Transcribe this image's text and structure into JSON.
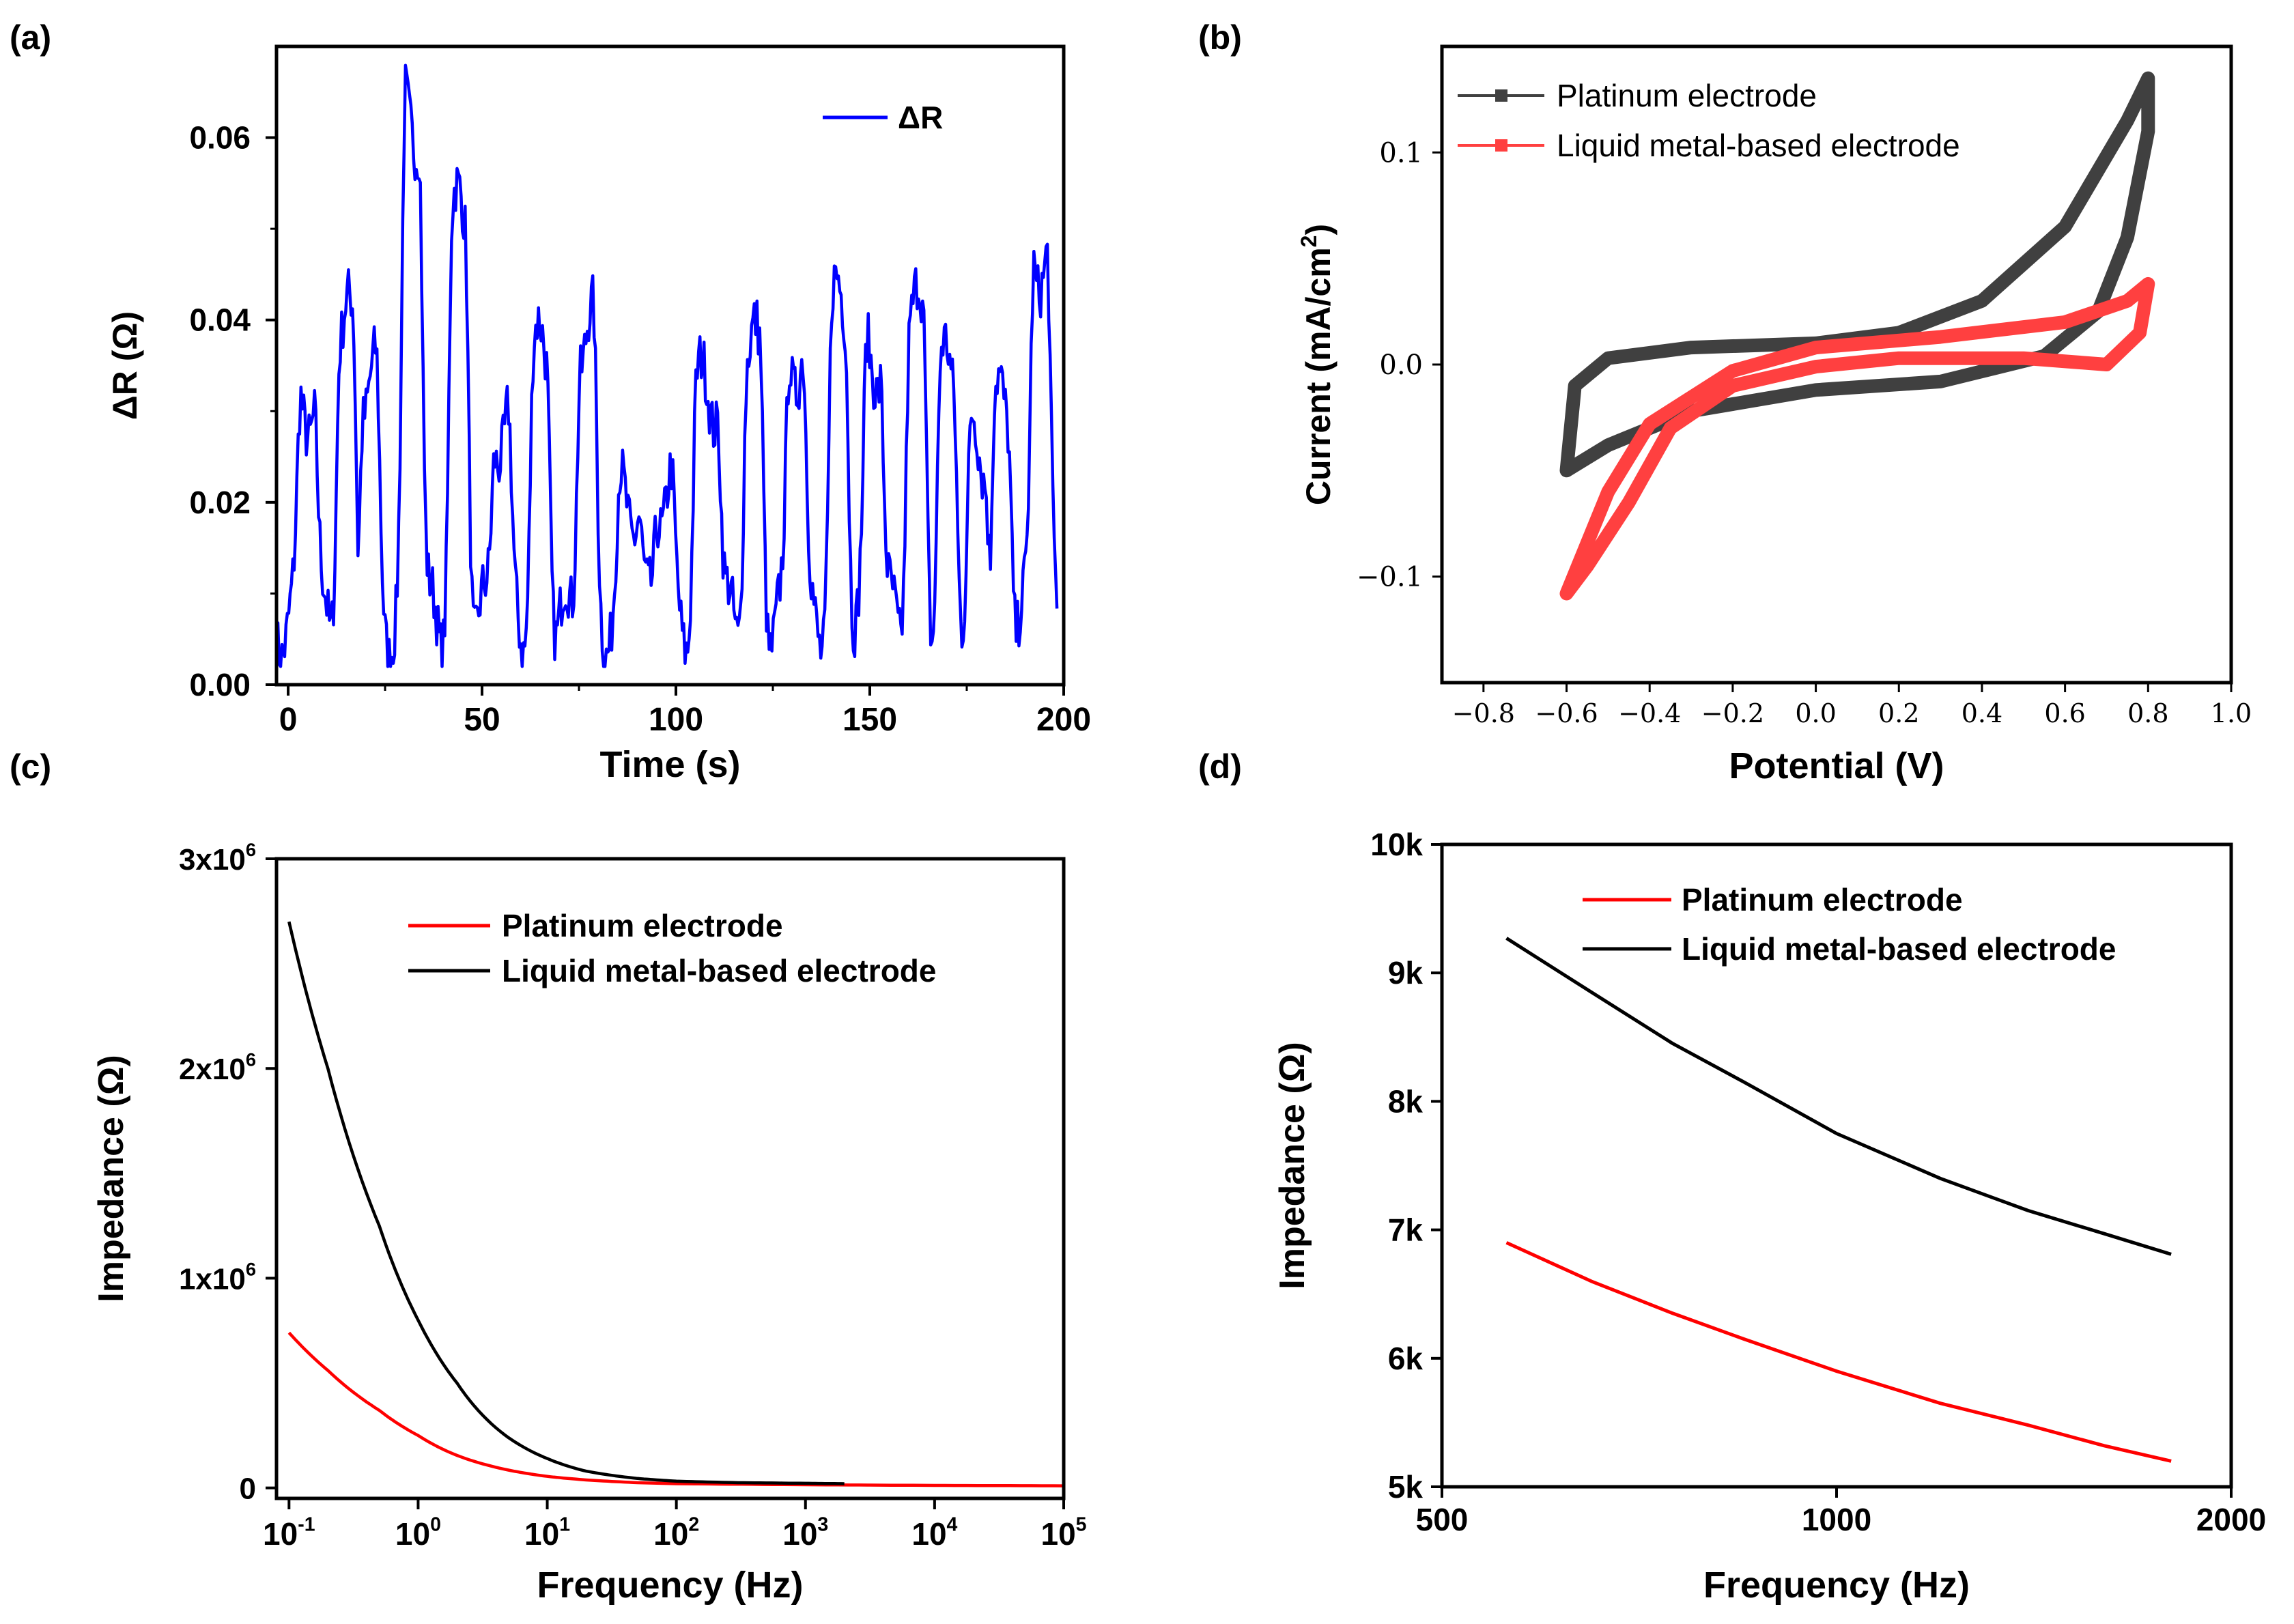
{
  "chart_data": [
    {
      "panel": "(a)",
      "type": "line",
      "xlabel": "Time (s)",
      "ylabel": "ΔR  (Ω)",
      "xlim": [
        -3,
        200
      ],
      "ylim": [
        0,
        0.07
      ],
      "xticks": [
        0,
        50,
        100,
        150,
        200
      ],
      "xtick_labels": [
        "0",
        "50",
        "100",
        "150",
        "200"
      ],
      "yticks": [
        0,
        0.02,
        0.04,
        0.06
      ],
      "ytick_labels": [
        "0.00",
        "0.02",
        "0.04",
        "0.06"
      ],
      "series": [
        {
          "name": "ΔR",
          "color": "#0000ff",
          "peaks": [
            {
              "t": 5,
              "v": 0.031,
              "w": 1.6
            },
            {
              "t": 15,
              "v": 0.039,
              "w": 1.6
            },
            {
              "t": 21,
              "v": 0.033,
              "w": 1.6
            },
            {
              "t": 32,
              "v": 0.062,
              "w": 1.7
            },
            {
              "t": 44,
              "v": 0.051,
              "w": 1.6
            },
            {
              "t": 55,
              "v": 0.028,
              "w": 1.6
            },
            {
              "t": 65,
              "v": 0.036,
              "w": 1.6
            },
            {
              "t": 77,
              "v": 0.038,
              "w": 1.6
            },
            {
              "t": 88,
              "v": 0.02,
              "w": 2.2
            },
            {
              "t": 97,
              "v": 0.021,
              "w": 1.6
            },
            {
              "t": 108,
              "v": 0.032,
              "w": 2.6
            },
            {
              "t": 120,
              "v": 0.036,
              "w": 1.6
            },
            {
              "t": 131,
              "v": 0.036,
              "w": 1.6
            },
            {
              "t": 142,
              "v": 0.041,
              "w": 1.6
            },
            {
              "t": 151,
              "v": 0.036,
              "w": 1.6
            },
            {
              "t": 162,
              "v": 0.04,
              "w": 1.7
            },
            {
              "t": 170,
              "v": 0.034,
              "w": 1.6
            },
            {
              "t": 178,
              "v": 0.026,
              "w": 1.7
            },
            {
              "t": 184,
              "v": 0.03,
              "w": 1.6
            },
            {
              "t": 194,
              "v": 0.047,
              "w": 1.6
            }
          ],
          "baseline": 0.007
        }
      ]
    },
    {
      "panel": "(b)",
      "type": "line",
      "xlabel": "Potential (V)",
      "ylabel": "Current (mA/cm²)",
      "xlim": [
        -0.9,
        1.0
      ],
      "ylim": [
        -0.15,
        0.15
      ],
      "xticks": [
        -0.8,
        -0.6,
        -0.4,
        -0.2,
        0.0,
        0.2,
        0.4,
        0.6,
        0.8,
        1.0
      ],
      "xtick_labels": [
        "−0.8",
        "−0.6",
        "−0.4",
        "−0.2",
        "0.0",
        "0.2",
        "0.4",
        "0.6",
        "0.8",
        "1.0"
      ],
      "yticks": [
        -0.1,
        0.0,
        0.1
      ],
      "ytick_labels": [
        "−0.1",
        "0.0",
        "0.1"
      ],
      "series": [
        {
          "name": "Platinum electrode",
          "color": "#404040",
          "loop": [
            [
              -0.6,
              -0.05
            ],
            [
              -0.58,
              -0.01
            ],
            [
              -0.5,
              0.003
            ],
            [
              -0.3,
              0.008
            ],
            [
              0.0,
              0.01
            ],
            [
              0.2,
              0.015
            ],
            [
              0.4,
              0.03
            ],
            [
              0.6,
              0.065
            ],
            [
              0.75,
              0.115
            ],
            [
              0.8,
              0.135
            ],
            [
              0.8,
              0.11
            ],
            [
              0.75,
              0.06
            ],
            [
              0.68,
              0.025
            ],
            [
              0.55,
              0.004
            ],
            [
              0.3,
              -0.008
            ],
            [
              0.0,
              -0.012
            ],
            [
              -0.3,
              -0.022
            ],
            [
              -0.5,
              -0.038
            ],
            [
              -0.6,
              -0.05
            ]
          ]
        },
        {
          "name": "Liquid metal-based electrode",
          "color": "#ff4040",
          "loop": [
            [
              -0.6,
              -0.108
            ],
            [
              -0.5,
              -0.06
            ],
            [
              -0.4,
              -0.028
            ],
            [
              -0.2,
              -0.003
            ],
            [
              0.0,
              0.008
            ],
            [
              0.3,
              0.013
            ],
            [
              0.6,
              0.02
            ],
            [
              0.75,
              0.03
            ],
            [
              0.8,
              0.038
            ],
            [
              0.78,
              0.015
            ],
            [
              0.7,
              0.0
            ],
            [
              0.5,
              0.003
            ],
            [
              0.2,
              0.003
            ],
            [
              0.0,
              -0.001
            ],
            [
              -0.2,
              -0.01
            ],
            [
              -0.35,
              -0.03
            ],
            [
              -0.45,
              -0.065
            ],
            [
              -0.55,
              -0.095
            ],
            [
              -0.6,
              -0.108
            ]
          ]
        }
      ]
    },
    {
      "panel": "(c)",
      "type": "line",
      "xscale": "log",
      "xlabel": "Frequency (Hz)",
      "ylabel": "Impedance (Ω)",
      "xlim": [
        0.08,
        100000
      ],
      "ylim": [
        -50000,
        3000000
      ],
      "xticks": [
        0.1,
        1,
        10,
        100,
        1000,
        10000,
        100000
      ],
      "xtick_labels": [
        {
          "base": "10",
          "exp": "-1"
        },
        {
          "base": "10",
          "exp": "0"
        },
        {
          "base": "10",
          "exp": "1"
        },
        {
          "base": "10",
          "exp": "2"
        },
        {
          "base": "10",
          "exp": "3"
        },
        {
          "base": "10",
          "exp": "4"
        },
        {
          "base": "10",
          "exp": "5"
        }
      ],
      "yticks": [
        0,
        1000000,
        2000000,
        3000000
      ],
      "ytick_labels": [
        {
          "base": "0",
          "exp": ""
        },
        {
          "base": "1x10",
          "exp": "6"
        },
        {
          "base": "2x10",
          "exp": "6"
        },
        {
          "base": "3x10",
          "exp": "6"
        }
      ],
      "series": [
        {
          "name": "Platinum electrode",
          "color": "#ff0000",
          "x": [
            0.1,
            0.2,
            0.5,
            1,
            2,
            5,
            10,
            20,
            50,
            100,
            1000,
            10000,
            100000
          ],
          "y": [
            740000,
            560000,
            370000,
            250000,
            155000,
            85000,
            55000,
            38000,
            25000,
            20000,
            15000,
            12000,
            10000
          ]
        },
        {
          "name": "Liquid metal-based electrode",
          "color": "#000000",
          "x": [
            0.1,
            0.2,
            0.5,
            1,
            2,
            5,
            10,
            20,
            50,
            100,
            300,
            1000,
            2000
          ],
          "y": [
            2700000,
            2000000,
            1250000,
            800000,
            500000,
            240000,
            140000,
            80000,
            45000,
            32000,
            25000,
            22000,
            20000
          ]
        }
      ]
    },
    {
      "panel": "(d)",
      "type": "line",
      "xscale": "log",
      "xlabel": "Frequency (Hz)",
      "ylabel": "Impedance (Ω)",
      "xlim": [
        500,
        2000
      ],
      "ylim": [
        5000,
        10000
      ],
      "xticks": [
        500,
        1000,
        2000
      ],
      "xtick_labels": [
        "500",
        "1000",
        "2000"
      ],
      "yticks": [
        5000,
        6000,
        7000,
        8000,
        9000,
        10000
      ],
      "ytick_labels": [
        "5k",
        "6k",
        "7k",
        "8k",
        "9k",
        "10k"
      ],
      "series": [
        {
          "name": "Platinum electrode",
          "color": "#ff0000",
          "x": [
            560,
            650,
            750,
            850,
            1000,
            1200,
            1400,
            1600,
            1800
          ],
          "y": [
            6900,
            6600,
            6350,
            6150,
            5900,
            5650,
            5480,
            5320,
            5200
          ]
        },
        {
          "name": "Liquid metal-based electrode",
          "color": "#000000",
          "x": [
            560,
            650,
            750,
            850,
            1000,
            1200,
            1400,
            1600,
            1800
          ],
          "y": [
            9270,
            8850,
            8450,
            8150,
            7750,
            7400,
            7150,
            6970,
            6810
          ]
        }
      ]
    }
  ],
  "panel_labels": [
    "(a)",
    "(b)",
    "(c)",
    "(d)"
  ],
  "legend_a": "ΔR",
  "legend_b": [
    "Platinum electrode",
    "Liquid metal-based electrode"
  ],
  "legend_c": [
    "Platinum electrode",
    "Liquid metal-based electrode"
  ],
  "legend_d": [
    "Platinum electrode",
    "Liquid metal-based electrode"
  ]
}
